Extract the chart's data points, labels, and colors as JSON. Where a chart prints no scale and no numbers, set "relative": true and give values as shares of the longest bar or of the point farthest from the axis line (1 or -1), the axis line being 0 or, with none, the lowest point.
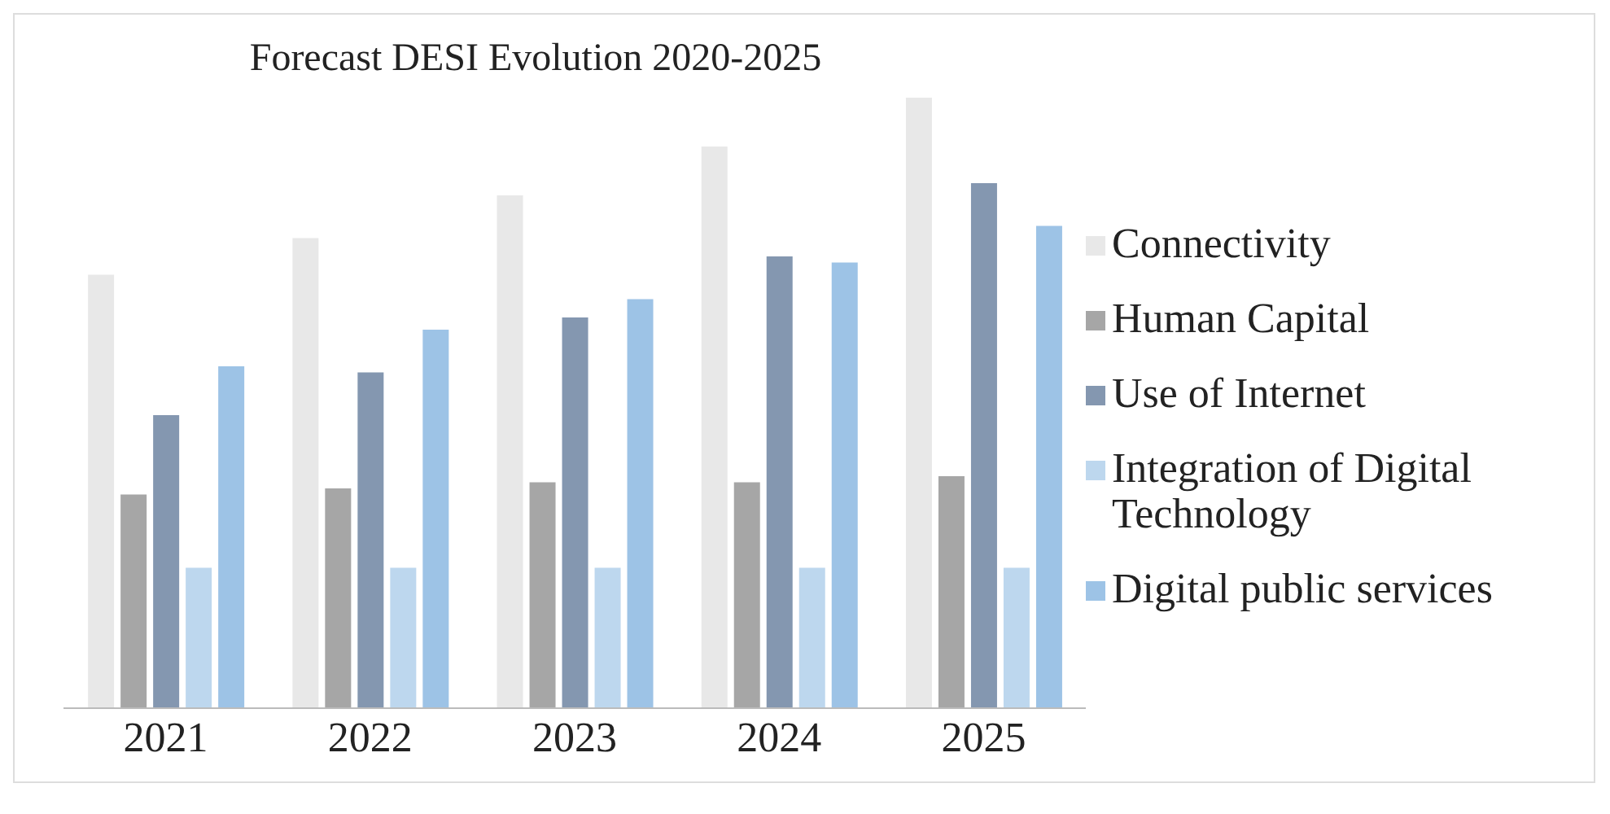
{
  "chart_data": {
    "type": "bar",
    "title": "Forecast DESI Evolution 2020-2025",
    "relative": true,
    "legend": "right",
    "categories": [
      "2021",
      "2022",
      "2023",
      "2024",
      "2025"
    ],
    "series": [
      {
        "name": "Connectivity",
        "color": "#e8e8e8",
        "values": [
          0.71,
          0.77,
          0.84,
          0.92,
          1
        ]
      },
      {
        "name": "Human Capital",
        "color": "#a6a6a6",
        "values": [
          0.35,
          0.36,
          0.37,
          0.37,
          0.38
        ]
      },
      {
        "name": "Use of Internet",
        "color": "#8497b0",
        "values": [
          0.48,
          0.55,
          0.64,
          0.74,
          0.86
        ]
      },
      {
        "name": "Integration of Digital Technology",
        "color": "#bdd7ee",
        "values": [
          0.23,
          0.23,
          0.23,
          0.23,
          0.23
        ]
      },
      {
        "name": "Digital public services",
        "color": "#9dc3e6",
        "values": [
          0.56,
          0.62,
          0.67,
          0.73,
          0.79
        ]
      }
    ]
  }
}
